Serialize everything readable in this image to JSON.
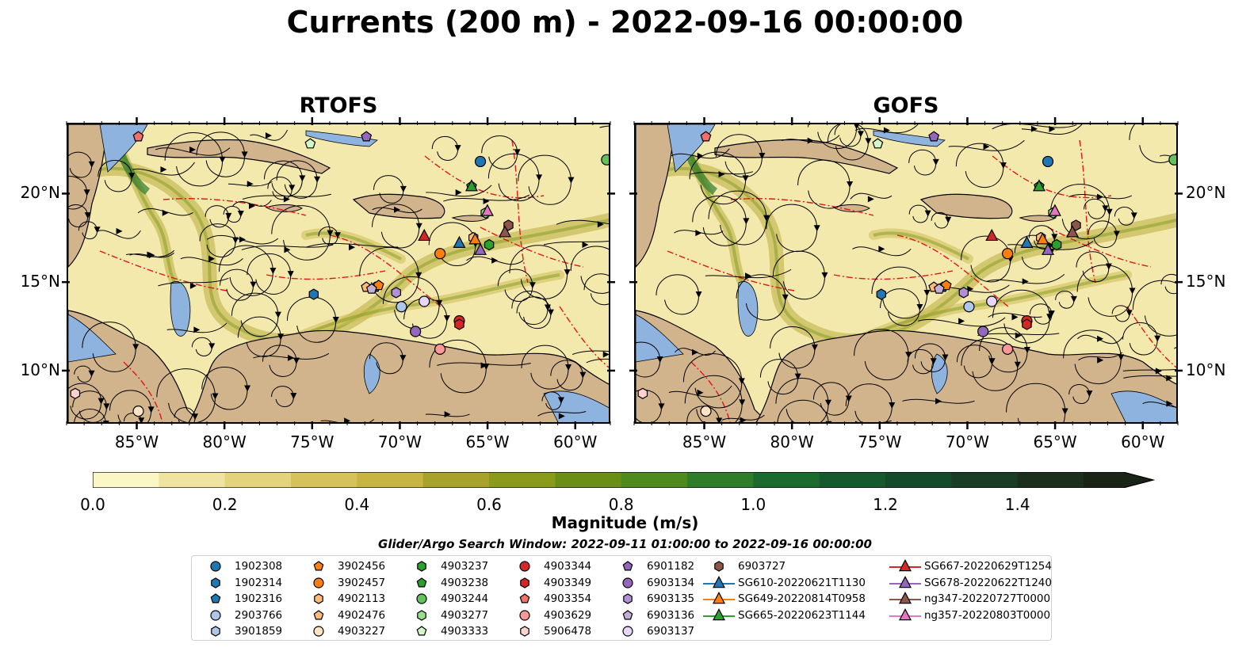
{
  "title": "Currents (200 m) - 2022-09-16 00:00:00",
  "panels": [
    {
      "title": "RTOFS"
    },
    {
      "title": "GOFS"
    }
  ],
  "axes": {
    "lon_ticks": [
      "85°W",
      "80°W",
      "75°W",
      "70°W",
      "65°W",
      "60°W"
    ],
    "lat_ticks": [
      "20°N",
      "15°N",
      "10°N"
    ]
  },
  "colorbar": {
    "label": "Magnitude (m/s)",
    "ticks": [
      "0.0",
      "0.2",
      "0.4",
      "0.6",
      "0.8",
      "1.0",
      "1.2",
      "1.4"
    ],
    "colors": [
      "#fbf7c4",
      "#f0e3a0",
      "#e4d27d",
      "#d6c15d",
      "#c7b442",
      "#a9a22a",
      "#8a9a1a",
      "#6b8e19",
      "#4f8a1f",
      "#2f7d28",
      "#1b6b2e",
      "#145a2c",
      "#154a2a",
      "#1a3d25",
      "#1c2f1c",
      "#1a2416"
    ]
  },
  "search_window": "Glider/Argo Search Window: 2022-09-11 01:00:00 to 2022-09-16 00:00:00",
  "legend": [
    {
      "label": "1902308",
      "marker": "circle",
      "color": "#1f77b4"
    },
    {
      "label": "1902314",
      "marker": "hexagon",
      "color": "#1f77b4"
    },
    {
      "label": "1902316",
      "marker": "pentagon",
      "color": "#1f77b4"
    },
    {
      "label": "2903766",
      "marker": "circle",
      "color": "#aec7e8"
    },
    {
      "label": "3901859",
      "marker": "hexagon",
      "color": "#aec7e8"
    },
    {
      "label": "3902456",
      "marker": "pentagon",
      "color": "#ff7f0e"
    },
    {
      "label": "3902457",
      "marker": "circle",
      "color": "#ff7f0e"
    },
    {
      "label": "4902113",
      "marker": "hexagon",
      "color": "#ffbb78"
    },
    {
      "label": "4902476",
      "marker": "pentagon",
      "color": "#ffbb78"
    },
    {
      "label": "4903227",
      "marker": "circle",
      "color": "#ffe4c4"
    },
    {
      "label": "4903237",
      "marker": "hexagon",
      "color": "#2ca02c"
    },
    {
      "label": "4903238",
      "marker": "pentagon",
      "color": "#2ca02c"
    },
    {
      "label": "4903244",
      "marker": "circle",
      "color": "#63c35a"
    },
    {
      "label": "4903277",
      "marker": "hexagon",
      "color": "#98df8a"
    },
    {
      "label": "4903333",
      "marker": "pentagon",
      "color": "#d4f7c8"
    },
    {
      "label": "4903344",
      "marker": "circle",
      "color": "#d62728"
    },
    {
      "label": "4903349",
      "marker": "hexagon",
      "color": "#d62728"
    },
    {
      "label": "4903354",
      "marker": "pentagon",
      "color": "#f0706a"
    },
    {
      "label": "4903629",
      "marker": "circle",
      "color": "#ff9896"
    },
    {
      "label": "5906478",
      "marker": "hexagon",
      "color": "#ffd1cf"
    },
    {
      "label": "6901182",
      "marker": "pentagon",
      "color": "#9467bd"
    },
    {
      "label": "6903134",
      "marker": "circle",
      "color": "#9467bd"
    },
    {
      "label": "6903135",
      "marker": "hexagon",
      "color": "#b08fd6"
    },
    {
      "label": "6903136",
      "marker": "pentagon",
      "color": "#c5b0d5"
    },
    {
      "label": "6903137",
      "marker": "circle",
      "color": "#e6d6f7"
    },
    {
      "label": "6903727",
      "marker": "hexagon",
      "color": "#8c564b"
    },
    {
      "label": "SG610-20220621T1130",
      "marker": "triangle",
      "color": "#1f77b4"
    },
    {
      "label": "SG649-20220814T0958",
      "marker": "triangle",
      "color": "#ff7f0e"
    },
    {
      "label": "SG665-20220623T1144",
      "marker": "triangle",
      "color": "#2ca02c"
    },
    {
      "label": "SG667-20220629T1254",
      "marker": "triangle",
      "color": "#d62728"
    },
    {
      "label": "SG678-20220622T1240",
      "marker": "triangle",
      "color": "#9467bd"
    },
    {
      "label": "ng347-20220727T0000",
      "marker": "triangle",
      "color": "#8c564b"
    },
    {
      "label": "ng357-20220803T0000",
      "marker": "triangle",
      "color": "#e377c2"
    }
  ],
  "platforms": [
    {
      "id": "1902308",
      "lon": -65.5,
      "lat": 21.9
    },
    {
      "id": "1902314",
      "lon": -75.0,
      "lat": 14.4
    },
    {
      "id": "1902316",
      "lon": -71.5,
      "lat": 14.8
    },
    {
      "id": "2903766",
      "lon": -70.0,
      "lat": 13.7
    },
    {
      "id": "3901859",
      "lon": -69.2,
      "lat": 12.3
    },
    {
      "id": "3902456",
      "lon": -71.3,
      "lat": 14.9
    },
    {
      "id": "3902457",
      "lon": -67.8,
      "lat": 16.7
    },
    {
      "id": "4902113",
      "lon": -65.9,
      "lat": 17.6
    },
    {
      "id": "4902476",
      "lon": -72.0,
      "lat": 14.8
    },
    {
      "id": "4903227",
      "lon": -85.0,
      "lat": 7.8
    },
    {
      "id": "4903237",
      "lon": -65.0,
      "lat": 17.2
    },
    {
      "id": "4903238",
      "lon": -66.0,
      "lat": 20.5
    },
    {
      "id": "4903244",
      "lon": -58.3,
      "lat": 22.0
    },
    {
      "id": "4903277",
      "lon": -65.2,
      "lat": 19.0
    },
    {
      "id": "4903333",
      "lon": -75.2,
      "lat": 22.9
    },
    {
      "id": "4903344",
      "lon": -66.7,
      "lat": 12.9
    },
    {
      "id": "4903349",
      "lon": -66.7,
      "lat": 12.7
    },
    {
      "id": "4903354",
      "lon": -85.0,
      "lat": 23.3
    },
    {
      "id": "4903629",
      "lon": -67.8,
      "lat": 11.3
    },
    {
      "id": "5906478",
      "lon": -88.6,
      "lat": 8.8
    },
    {
      "id": "6901182",
      "lon": -72.0,
      "lat": 23.3
    },
    {
      "id": "6903134",
      "lon": -69.2,
      "lat": 12.3
    },
    {
      "id": "6903135",
      "lon": -70.3,
      "lat": 14.5
    },
    {
      "id": "6903136",
      "lon": -71.7,
      "lat": 14.7
    },
    {
      "id": "6903137",
      "lon": -68.7,
      "lat": 14.0
    },
    {
      "id": "6903727",
      "lon": -63.9,
      "lat": 18.3
    },
    {
      "id": "SG610-20220621T1130",
      "lon": -66.7,
      "lat": 17.3
    },
    {
      "id": "SG649-20220814T0958",
      "lon": -65.8,
      "lat": 17.5
    },
    {
      "id": "SG665-20220623T1144",
      "lon": -66.0,
      "lat": 20.5
    },
    {
      "id": "SG667-20220629T1254",
      "lon": -68.7,
      "lat": 17.7
    },
    {
      "id": "SG678-20220622T1240",
      "lon": -65.5,
      "lat": 16.9
    },
    {
      "id": "ng347-20220727T0000",
      "lon": -64.1,
      "lat": 17.9
    },
    {
      "id": "ng357-20220803T0000",
      "lon": -65.1,
      "lat": 19.1
    }
  ],
  "map_extent": {
    "lon": [
      -89,
      -58
    ],
    "lat": [
      7,
      24
    ]
  }
}
